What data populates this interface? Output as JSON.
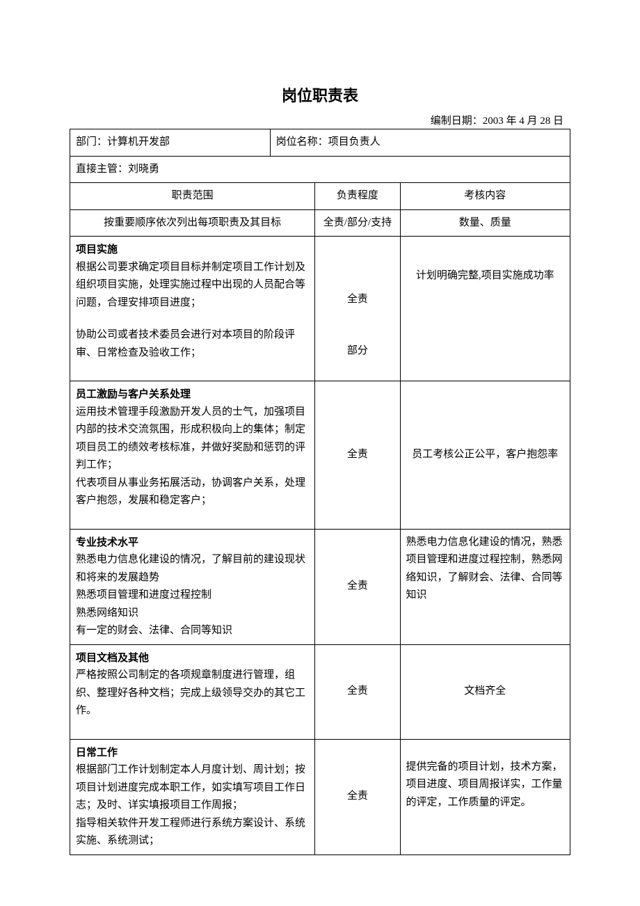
{
  "colors": {
    "text": "#000000",
    "bg": "#ffffff",
    "border": "#000000"
  },
  "doc": {
    "title": "岗位职责表",
    "date_prefix": "编制日期：",
    "date_value": "2003 年 4 月 28 日"
  },
  "header": {
    "dept_label": "部门：",
    "dept_value": "计算机开发部",
    "position_label": "岗位名称：",
    "position_value": "项目负责人",
    "supervisor_label": "直接主管：",
    "supervisor_value": "刘晓勇"
  },
  "columns": {
    "scope_header": "职责范围",
    "degree_header": "负责程度",
    "metric_header": "考核内容",
    "scope_sub": "按重要顺序依次列出每项职责及其目标",
    "degree_sub": "全责/部分/支持",
    "metric_sub": "数量、质量"
  },
  "rows": [
    {
      "title": "项目实施",
      "body": "根据公司要求确定项目目标并制定项目工作计划及组织项目实施，处理实施过程中出现的人员配合等问题，合理安排项目进度；",
      "body2": "协助公司或者技术委员会进行对本项目的阶段评审、日常检查及验收工作；",
      "degree": "全责",
      "degree2": "部分",
      "metric": "计划明确完整,项目实施成功率"
    },
    {
      "title": "员工激励与客户关系处理",
      "body": "运用技术管理手段激励开发人员的士气，加强项目内部的技术交流氛围，形成积极向上的集体；制定项目员工的绩效考核标准，并做好奖励和惩罚的评判工作；\n代表项目从事业务拓展活动，协调客户关系，处理客户抱怨，发展和稳定客户；",
      "degree": "全责",
      "metric": "员工考核公正公平，客户抱怨率"
    },
    {
      "title": "专业技术水平",
      "body": "熟悉电力信息化建设的情况，了解目前的建设现状和将来的发展趋势\n熟悉项目管理和进度过程控制\n熟悉网络知识\n有一定的财会、法律、合同等知识",
      "degree": "全责",
      "metric": "熟悉电力信息化建设的情况，熟悉项目管理和进度过程控制，熟悉网络知识，了解财会、法律、合同等知识"
    },
    {
      "title": "项目文档及其他",
      "body": "严格按照公司制定的各项规章制度进行管理，组织、整理好各种文档；完成上级领导交办的其它工作。",
      "degree": "全责",
      "metric": "文档齐全"
    },
    {
      "title": "日常工作",
      "body": "根据部门工作计划制定本人月度计划、周计划；按项目计划进度完成本职工作，如实填写项目工作日志；及时、详实填报项目工作周报；\n指导相关软件开发工程师进行系统方案设计、系统实施、系统测试；",
      "degree": "全责",
      "metric": "提供完备的项目计划，技术方案，项目进度、项目周报详实，工作量的评定，工作质量的评定。"
    }
  ]
}
